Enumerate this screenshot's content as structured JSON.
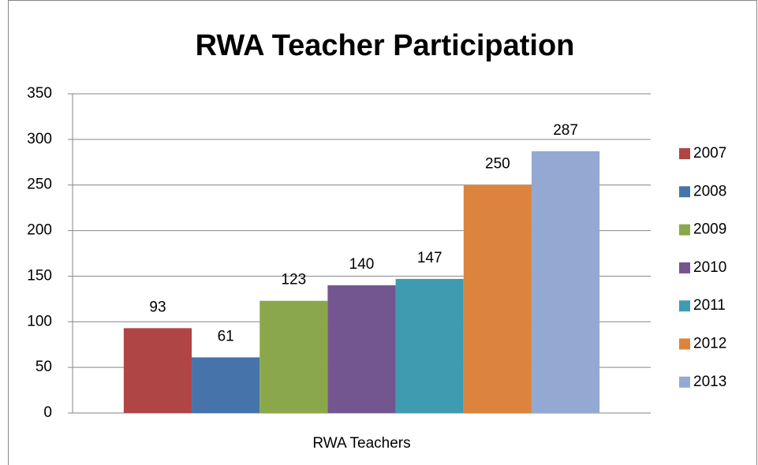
{
  "chart_data": {
    "type": "bar",
    "title": "RWA Teacher Participation",
    "categories": [
      "RWA Teachers"
    ],
    "series": [
      {
        "name": "2007",
        "color": "#b04545",
        "values": [
          93
        ]
      },
      {
        "name": "2008",
        "color": "#4674aa",
        "values": [
          61
        ]
      },
      {
        "name": "2009",
        "color": "#8aa84b",
        "values": [
          123
        ]
      },
      {
        "name": "2010",
        "color": "#73568f",
        "values": [
          140
        ]
      },
      {
        "name": "2011",
        "color": "#3f9bb0",
        "values": [
          147
        ]
      },
      {
        "name": "2012",
        "color": "#dc843e",
        "values": [
          250
        ]
      },
      {
        "name": "2013",
        "color": "#94a9d2",
        "values": [
          287
        ]
      }
    ],
    "ylim": [
      0,
      350
    ],
    "yticks": [
      0,
      50,
      100,
      150,
      200,
      250,
      300,
      350
    ],
    "grid": true,
    "legend": "right"
  }
}
